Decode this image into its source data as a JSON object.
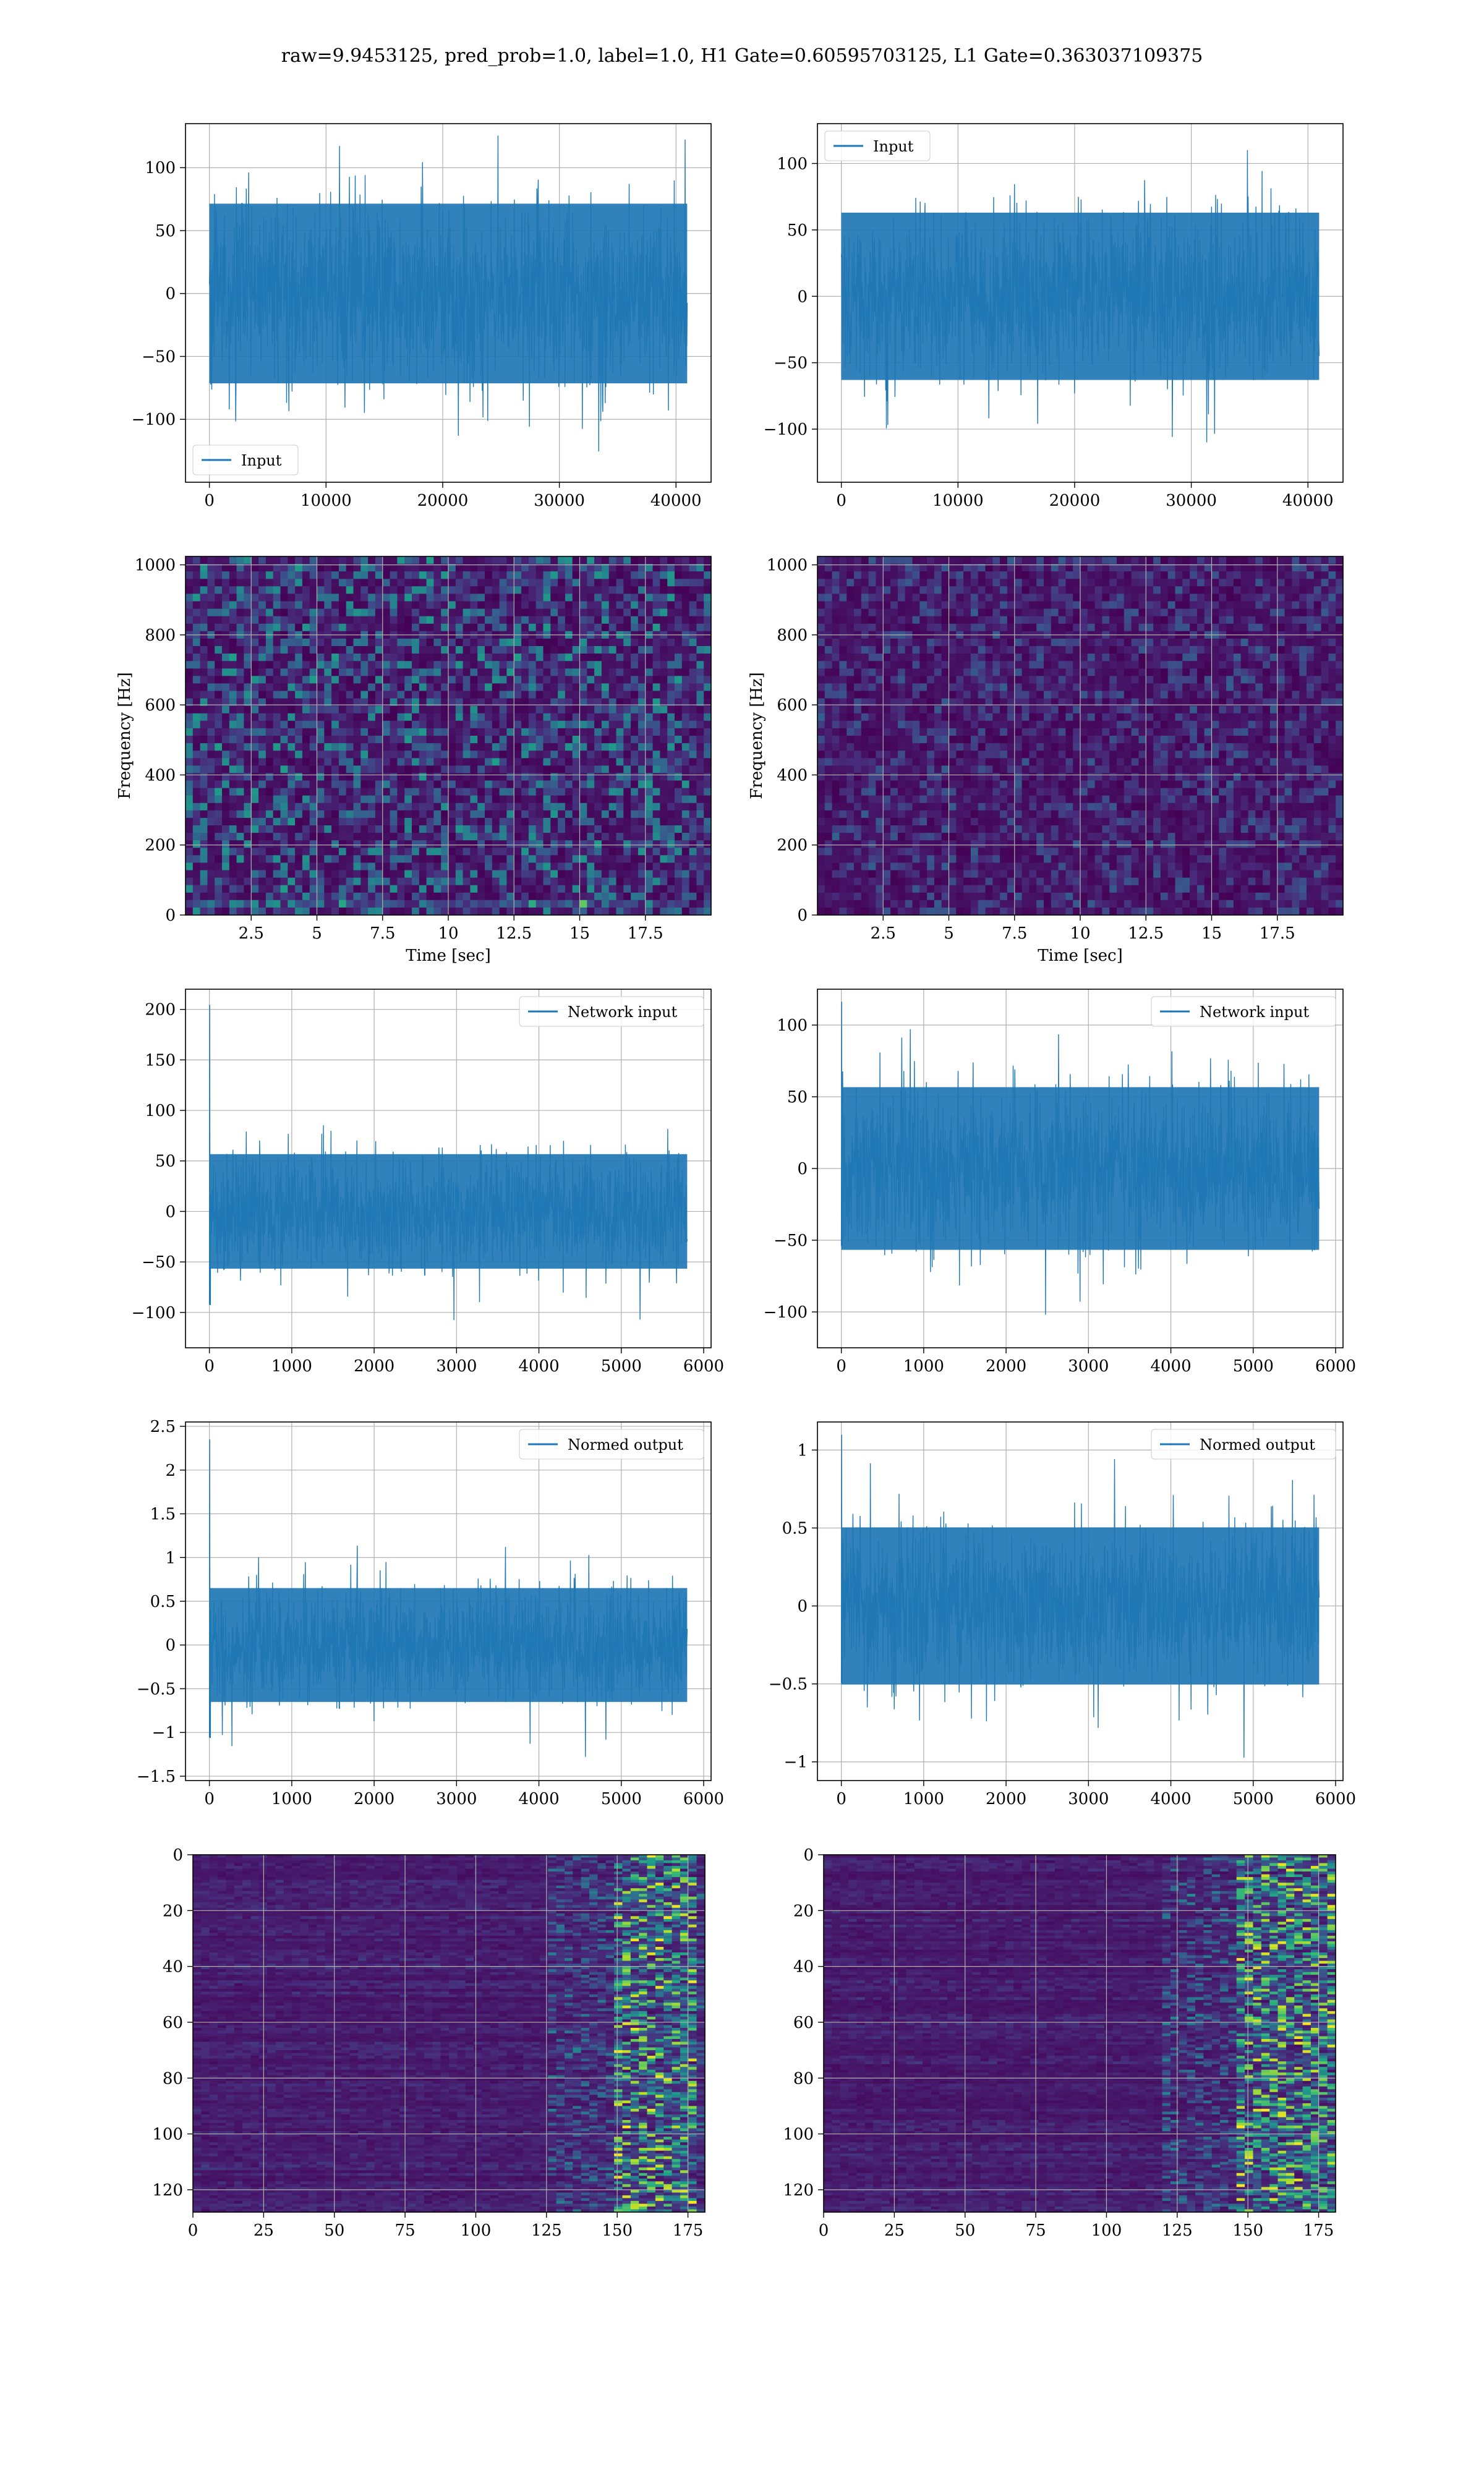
{
  "figure": {
    "suptitle": "raw=9.9453125, pred_prob=1.0, label=1.0, H1 Gate=0.60595703125, L1 Gate=0.363037109375"
  },
  "colors": {
    "line": "#1f77b4",
    "grid": "#b0b0b0",
    "axes": "#000000"
  },
  "chart_data": [
    {
      "id": "input-h1",
      "type": "line",
      "series": [
        {
          "name": "Input",
          "n": 40960,
          "std": 34
        }
      ],
      "xlim": [
        -2048,
        43008
      ],
      "ylim": [
        -150,
        135
      ],
      "xticks": [
        0,
        10000,
        20000,
        30000,
        40000
      ],
      "yticks": [
        -100,
        -50,
        0,
        50,
        100
      ],
      "xlabel": "",
      "ylabel": "",
      "legend": "lower-left",
      "grid": true
    },
    {
      "id": "input-l1",
      "type": "line",
      "series": [
        {
          "name": "Input",
          "n": 40960,
          "std": 30
        }
      ],
      "xlim": [
        -2048,
        43008
      ],
      "ylim": [
        -140,
        130
      ],
      "xticks": [
        0,
        10000,
        20000,
        30000,
        40000
      ],
      "yticks": [
        -100,
        -50,
        0,
        50,
        100
      ],
      "xlabel": "",
      "ylabel": "",
      "legend": "upper-left",
      "grid": true
    },
    {
      "id": "spec-h1",
      "type": "heatmap",
      "colormap": "viridis",
      "xlim": [
        0,
        20
      ],
      "ylim": [
        0,
        1024
      ],
      "xticks": [
        2.5,
        5.0,
        7.5,
        10.0,
        12.5,
        15.0,
        17.5
      ],
      "yticks": [
        0,
        200,
        400,
        600,
        800,
        1000
      ],
      "xlabel": "Time [sec]",
      "ylabel": "Frequency [Hz]",
      "grid": true,
      "intensity": 0.32
    },
    {
      "id": "spec-l1",
      "type": "heatmap",
      "colormap": "viridis",
      "xlim": [
        0,
        20
      ],
      "ylim": [
        0,
        1024
      ],
      "xticks": [
        2.5,
        5.0,
        7.5,
        10.0,
        12.5,
        15.0,
        17.5
      ],
      "yticks": [
        0,
        200,
        400,
        600,
        800,
        1000
      ],
      "xlabel": "Time [sec]",
      "ylabel": "Frequency [Hz]",
      "grid": true,
      "intensity": 0.16
    },
    {
      "id": "net-h1",
      "type": "line",
      "series": [
        {
          "name": "Network input",
          "n": 5800,
          "std": 27,
          "spike": 205
        }
      ],
      "xlim": [
        -290,
        6090
      ],
      "ylim": [
        -135,
        220
      ],
      "xticks": [
        0,
        1000,
        2000,
        3000,
        4000,
        5000,
        6000
      ],
      "yticks": [
        -100,
        -50,
        0,
        50,
        100,
        150,
        200
      ],
      "xlabel": "",
      "ylabel": "",
      "legend": "upper-right",
      "grid": true
    },
    {
      "id": "net-l1",
      "type": "line",
      "series": [
        {
          "name": "Network input",
          "n": 5800,
          "std": 27,
          "spike": 120
        }
      ],
      "xlim": [
        -290,
        6090
      ],
      "ylim": [
        -125,
        125
      ],
      "xticks": [
        0,
        1000,
        2000,
        3000,
        4000,
        5000,
        6000
      ],
      "yticks": [
        -100,
        -50,
        0,
        50,
        100
      ],
      "xlabel": "",
      "ylabel": "",
      "legend": "upper-right",
      "grid": true
    },
    {
      "id": "norm-h1",
      "type": "line",
      "series": [
        {
          "name": "Normed output",
          "n": 5800,
          "std": 0.31,
          "spike": 2.35
        }
      ],
      "xlim": [
        -290,
        6090
      ],
      "ylim": [
        -1.55,
        2.55
      ],
      "xticks": [
        0,
        1000,
        2000,
        3000,
        4000,
        5000,
        6000
      ],
      "yticks": [
        -1.5,
        -1.0,
        -0.5,
        0.0,
        0.5,
        1.0,
        1.5,
        2.0,
        2.5
      ],
      "xlabel": "",
      "ylabel": "",
      "legend": "upper-right",
      "grid": true
    },
    {
      "id": "norm-l1",
      "type": "line",
      "series": [
        {
          "name": "Normed output",
          "n": 5800,
          "std": 0.24,
          "spike": 1.1
        }
      ],
      "xlim": [
        -290,
        6090
      ],
      "ylim": [
        -1.12,
        1.18
      ],
      "xticks": [
        0,
        1000,
        2000,
        3000,
        4000,
        5000,
        6000
      ],
      "yticks": [
        -1.0,
        -0.5,
        0.0,
        0.5,
        1.0
      ],
      "xlabel": "",
      "ylabel": "",
      "legend": "upper-right",
      "grid": true
    },
    {
      "id": "feat-h1",
      "type": "heatmap",
      "colormap": "viridis",
      "xlim": [
        0,
        181
      ],
      "ylim": [
        128,
        0
      ],
      "xticks": [
        0,
        25,
        50,
        75,
        100,
        125,
        150,
        175
      ],
      "yticks": [
        0,
        20,
        40,
        60,
        80,
        100,
        120
      ],
      "xlabel": "",
      "ylabel": "",
      "grid": true,
      "hot_cols": [
        150,
        178
      ]
    },
    {
      "id": "feat-l1",
      "type": "heatmap",
      "colormap": "viridis",
      "xlim": [
        0,
        181
      ],
      "ylim": [
        128,
        0
      ],
      "xticks": [
        0,
        25,
        50,
        75,
        100,
        125,
        150,
        175
      ],
      "yticks": [
        0,
        20,
        40,
        60,
        80,
        100,
        120
      ],
      "xlabel": "",
      "ylabel": "",
      "grid": true,
      "hot_cols": [
        145,
        181
      ]
    }
  ]
}
